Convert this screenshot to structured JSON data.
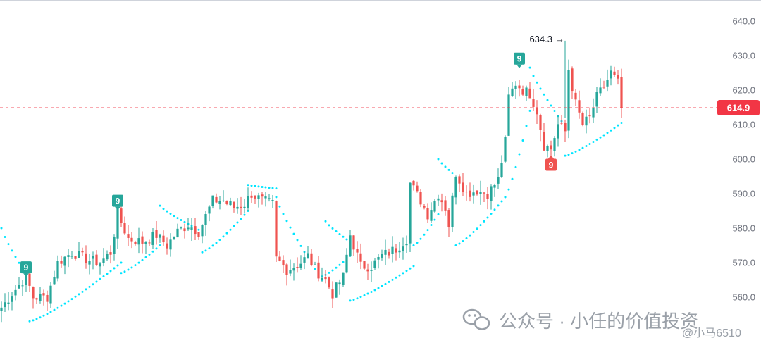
{
  "chart_data": {
    "type": "candlestick",
    "title": "",
    "xlabel": "",
    "ylabel": "",
    "ylim": [
      555,
      645
    ],
    "y_ticks": [
      560,
      570,
      580,
      590,
      600,
      610,
      620,
      630,
      640
    ],
    "y_tick_labels": [
      "560.0",
      "570.0",
      "580.0",
      "590.0",
      "600.0",
      "610.0",
      "620.0",
      "630.0",
      "640.0"
    ],
    "grid": false,
    "colors": {
      "up": "#26a69a",
      "down": "#ef5350",
      "sar": "#00e5ff",
      "badge_up": "#26a69a",
      "badge_down": "#ef5350",
      "last_price": "#f23645"
    },
    "current_price": 614.9,
    "current_price_label": "614.9",
    "high_annotation": {
      "value": 634.3,
      "label": "634.3",
      "arrow": "→"
    },
    "td_markers": [
      {
        "text": "9",
        "type": "up",
        "index": 7,
        "price": 566.5
      },
      {
        "text": "9",
        "type": "up",
        "index": 33,
        "price": 585.8
      },
      {
        "text": "9",
        "type": "up",
        "index": 147,
        "price": 627.0
      },
      {
        "text": "9",
        "type": "down",
        "index": 156,
        "price": 600.5
      }
    ],
    "anchors": [
      [
        0,
        557
      ],
      [
        3,
        561
      ],
      [
        7,
        566
      ],
      [
        9,
        560
      ],
      [
        13,
        560
      ],
      [
        16,
        570
      ],
      [
        20,
        573
      ],
      [
        24,
        571
      ],
      [
        28,
        570
      ],
      [
        31,
        573
      ],
      [
        33,
        584
      ],
      [
        36,
        577
      ],
      [
        40,
        576
      ],
      [
        44,
        578
      ],
      [
        47,
        575
      ],
      [
        50,
        579
      ],
      [
        53,
        581
      ],
      [
        56,
        579
      ],
      [
        60,
        588
      ],
      [
        63,
        588
      ],
      [
        66,
        586
      ],
      [
        69,
        587
      ],
      [
        71,
        590
      ],
      [
        74,
        588
      ],
      [
        77,
        587
      ],
      [
        78,
        571
      ],
      [
        81,
        568
      ],
      [
        85,
        570
      ],
      [
        87,
        572
      ],
      [
        89,
        568
      ],
      [
        92,
        565
      ],
      [
        94,
        561
      ],
      [
        97,
        566
      ],
      [
        99,
        578
      ],
      [
        102,
        569
      ],
      [
        105,
        569
      ],
      [
        108,
        572
      ],
      [
        112,
        574
      ],
      [
        115,
        577
      ],
      [
        116,
        593
      ],
      [
        119,
        588
      ],
      [
        121,
        584
      ],
      [
        124,
        590
      ],
      [
        126,
        586
      ],
      [
        127,
        581
      ],
      [
        129,
        596
      ],
      [
        132,
        590
      ],
      [
        135,
        591
      ],
      [
        138,
        590
      ],
      [
        141,
        594
      ],
      [
        143,
        605
      ],
      [
        144,
        618
      ],
      [
        146,
        622
      ],
      [
        148,
        620
      ],
      [
        150,
        619
      ],
      [
        152,
        614
      ],
      [
        154,
        604
      ],
      [
        156,
        603
      ],
      [
        158,
        610
      ],
      [
        160,
        608
      ],
      [
        161,
        626
      ],
      [
        163,
        616
      ],
      [
        165,
        610
      ],
      [
        167,
        612
      ],
      [
        169,
        618
      ],
      [
        171,
        621
      ],
      [
        173,
        625
      ],
      [
        175,
        622
      ],
      [
        176,
        614.9
      ]
    ],
    "sar_segments": [
      {
        "start": 0,
        "end": 8,
        "from": 580,
        "to": 565,
        "side": "above"
      },
      {
        "start": 8,
        "end": 34,
        "from": 553,
        "to": 570,
        "side": "below"
      },
      {
        "start": 34,
        "end": 45,
        "from": 567,
        "to": 575,
        "side": "below"
      },
      {
        "start": 45,
        "end": 57,
        "from": 586.5,
        "to": 579,
        "side": "above"
      },
      {
        "start": 57,
        "end": 70,
        "from": 573,
        "to": 585,
        "side": "below"
      },
      {
        "start": 70,
        "end": 78,
        "from": 592.5,
        "to": 591.5,
        "side": "above"
      },
      {
        "start": 78,
        "end": 91,
        "from": 589,
        "to": 565,
        "side": "above"
      },
      {
        "start": 91,
        "end": 99,
        "from": 566,
        "to": 572,
        "side": "below"
      },
      {
        "start": 92,
        "end": 99,
        "from": 582,
        "to": 576,
        "side": "above"
      },
      {
        "start": 99,
        "end": 117,
        "from": 559,
        "to": 569,
        "side": "below"
      },
      {
        "start": 117,
        "end": 124,
        "from": 575,
        "to": 584,
        "side": "below"
      },
      {
        "start": 124,
        "end": 128,
        "from": 600,
        "to": 596,
        "side": "above"
      },
      {
        "start": 129,
        "end": 143,
        "from": 575,
        "to": 589,
        "side": "below"
      },
      {
        "start": 143,
        "end": 150,
        "from": 589,
        "to": 614,
        "side": "below"
      },
      {
        "start": 150,
        "end": 159,
        "from": 626.5,
        "to": 611,
        "side": "above"
      },
      {
        "start": 160,
        "end": 176,
        "from": 601,
        "to": 610.5,
        "side": "below"
      }
    ]
  },
  "watermark": {
    "text": "公众号 · 小任的价值投资",
    "handle": "@小马6510"
  }
}
